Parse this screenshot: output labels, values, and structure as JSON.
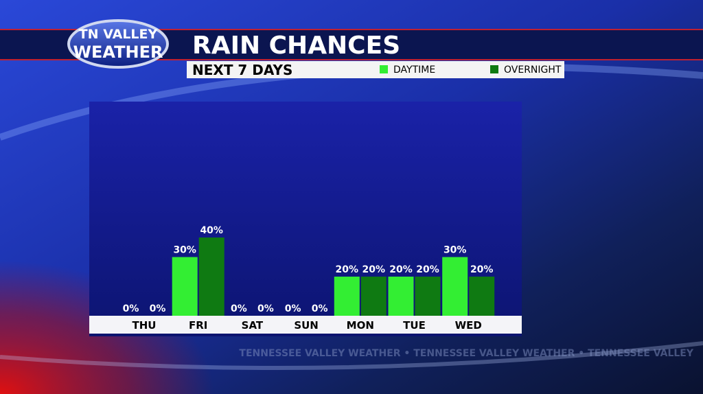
{
  "logo": {
    "line1": "TN VALLEY",
    "line2": "WEATHER"
  },
  "watermark": "TENNESSEE VALLEY WEATHER • TENNESSEE VALLEY WEATHER • TENNESSEE VALLEY",
  "chart_data": {
    "type": "bar",
    "title": "RAIN CHANCES",
    "subtitle": "NEXT 7 DAYS",
    "categories": [
      "THU",
      "FRI",
      "SAT",
      "SUN",
      "MON",
      "TUE",
      "WED"
    ],
    "series": [
      {
        "name": "DAYTIME",
        "color": "#33ee33",
        "values": [
          0,
          30,
          0,
          0,
          20,
          20,
          30
        ],
        "value_labels": [
          "0%",
          "30%",
          "0%",
          "0%",
          "20%",
          "20%",
          "30%"
        ]
      },
      {
        "name": "OVERNIGHT",
        "color": "#0f7a12",
        "values": [
          0,
          40,
          0,
          0,
          20,
          20,
          20
        ],
        "value_labels": [
          "0%",
          "40%",
          "0%",
          "0%",
          "20%",
          "20%",
          "20%"
        ]
      }
    ]
  }
}
